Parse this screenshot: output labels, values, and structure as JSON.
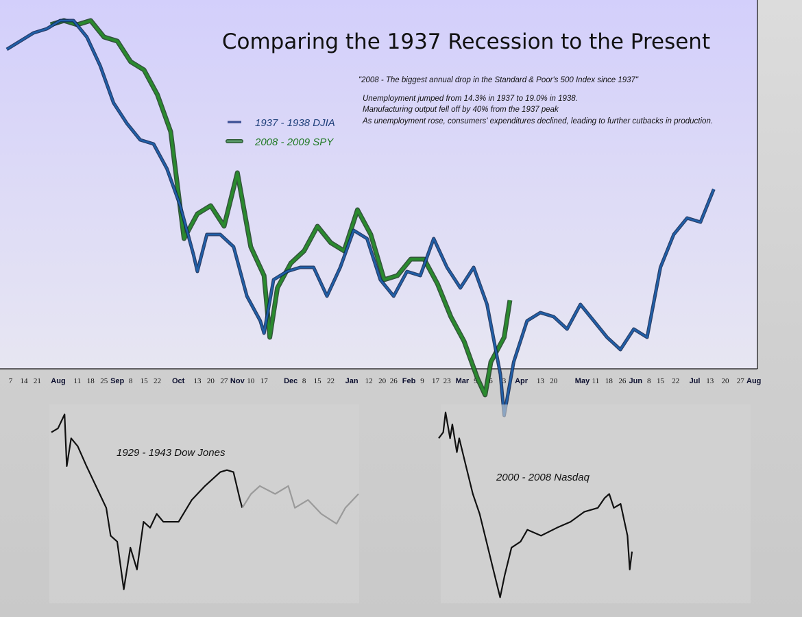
{
  "chart_data": [
    {
      "type": "line",
      "title": "Comparing the 1937 Recession to the Present",
      "annotations": {
        "quote": "\"2008 - The biggest annual drop in the Standard & Poor's 500 Index since 1937\"",
        "lines": [
          "Unemployment jumped from 14.3% in 1937 to 19.0% in 1938.",
          "Manufacturing output fell off by 40% from the 1937 peak",
          "As unemployment rose, consumers' expenditures declined, leading to further cutbacks in production."
        ]
      },
      "legend_placement": "center-left",
      "grid": false,
      "ylim": [
        0,
        100
      ],
      "colors": {
        "djia": "#1f5fa8",
        "spy": "#2a8a2e",
        "plot_bg_top": "#d3cffb",
        "plot_bg_bottom": "#e7e6f2"
      },
      "x_ticks": [
        {
          "label": "7",
          "date": "1937-07-07"
        },
        {
          "label": "14",
          "date": "1937-07-14"
        },
        {
          "label": "21",
          "date": "1937-07-21"
        },
        {
          "label": "Aug",
          "date": "1937-08-01",
          "month": true
        },
        {
          "label": "11",
          "date": "1937-08-11"
        },
        {
          "label": "18",
          "date": "1937-08-18"
        },
        {
          "label": "25",
          "date": "1937-08-25"
        },
        {
          "label": "Sep",
          "date": "1937-09-01",
          "month": true
        },
        {
          "label": "8",
          "date": "1937-09-08"
        },
        {
          "label": "15",
          "date": "1937-09-15"
        },
        {
          "label": "22",
          "date": "1937-09-22"
        },
        {
          "label": "Oct",
          "date": "1937-10-03",
          "month": true
        },
        {
          "label": "13",
          "date": "1937-10-13"
        },
        {
          "label": "20",
          "date": "1937-10-20"
        },
        {
          "label": "27",
          "date": "1937-10-27"
        },
        {
          "label": "Nov",
          "date": "1937-11-03",
          "month": true
        },
        {
          "label": "10",
          "date": "1937-11-10"
        },
        {
          "label": "17",
          "date": "1937-11-17"
        },
        {
          "label": "Dec",
          "date": "1937-12-01",
          "month": true
        },
        {
          "label": "8",
          "date": "1937-12-08"
        },
        {
          "label": "15",
          "date": "1937-12-15"
        },
        {
          "label": "22",
          "date": "1937-12-22"
        },
        {
          "label": "Jan",
          "date": "1938-01-02",
          "month": true
        },
        {
          "label": "12",
          "date": "1938-01-11"
        },
        {
          "label": "20",
          "date": "1938-01-18"
        },
        {
          "label": "26",
          "date": "1938-01-24"
        },
        {
          "label": "Feb",
          "date": "1938-02-01",
          "month": true
        },
        {
          "label": "9",
          "date": "1938-02-08"
        },
        {
          "label": "17",
          "date": "1938-02-15"
        },
        {
          "label": "23",
          "date": "1938-02-21"
        },
        {
          "label": "Mar",
          "date": "1938-03-01",
          "month": true
        },
        {
          "label": "9",
          "date": "1938-03-08"
        },
        {
          "label": "16",
          "date": "1938-03-15"
        },
        {
          "label": "3",
          "date": "1938-03-23"
        },
        {
          "label": "Apr",
          "date": "1938-04-01",
          "month": true
        },
        {
          "label": "13",
          "date": "1938-04-11"
        },
        {
          "label": "20",
          "date": "1938-04-18"
        },
        {
          "label": "May",
          "date": "1938-05-03",
          "month": true
        },
        {
          "label": "11",
          "date": "1938-05-10"
        },
        {
          "label": "18",
          "date": "1938-05-17"
        },
        {
          "label": "26",
          "date": "1938-05-24"
        },
        {
          "label": "Jun",
          "date": "1938-05-31",
          "month": true
        },
        {
          "label": "8",
          "date": "1938-06-07"
        },
        {
          "label": "15",
          "date": "1938-06-13"
        },
        {
          "label": "22",
          "date": "1938-06-21"
        },
        {
          "label": "Jul",
          "date": "1938-07-01",
          "month": true
        },
        {
          "label": "13",
          "date": "1938-07-09"
        },
        {
          "label": "20",
          "date": "1938-07-17"
        },
        {
          "label": "27",
          "date": "1938-07-25"
        },
        {
          "label": "Aug",
          "date": "1938-08-01",
          "month": true
        }
      ],
      "series": [
        {
          "name": "1937 - 1938 DJIA",
          "start_year": 1937,
          "points": [
            [
              "1937-07-05",
              88
            ],
            [
              "1937-07-12",
              90
            ],
            [
              "1937-07-19",
              92
            ],
            [
              "1937-07-26",
              93
            ],
            [
              "1937-08-02",
              95
            ],
            [
              "1937-08-09",
              95
            ],
            [
              "1937-08-16",
              91
            ],
            [
              "1937-08-23",
              84
            ],
            [
              "1937-08-30",
              75
            ],
            [
              "1937-09-06",
              70
            ],
            [
              "1937-09-13",
              66
            ],
            [
              "1937-09-20",
              65
            ],
            [
              "1937-09-27",
              59
            ],
            [
              "1937-10-04",
              50
            ],
            [
              "1937-10-11",
              38
            ],
            [
              "1937-10-13",
              34
            ],
            [
              "1937-10-18",
              43
            ],
            [
              "1937-10-25",
              43
            ],
            [
              "1937-11-01",
              40
            ],
            [
              "1937-11-08",
              28
            ],
            [
              "1937-11-15",
              22
            ],
            [
              "1937-11-17",
              19
            ],
            [
              "1937-11-22",
              32
            ],
            [
              "1937-11-29",
              34
            ],
            [
              "1937-12-06",
              35
            ],
            [
              "1937-12-13",
              35
            ],
            [
              "1937-12-20",
              28
            ],
            [
              "1937-12-27",
              35
            ],
            [
              "1938-01-03",
              44
            ],
            [
              "1938-01-10",
              42
            ],
            [
              "1938-01-17",
              32
            ],
            [
              "1938-01-24",
              28
            ],
            [
              "1938-01-31",
              34
            ],
            [
              "1938-02-07",
              33
            ],
            [
              "1938-02-14",
              42
            ],
            [
              "1938-02-21",
              35
            ],
            [
              "1938-02-28",
              30
            ],
            [
              "1938-03-07",
              35
            ],
            [
              "1938-03-14",
              26
            ],
            [
              "1938-03-21",
              9
            ],
            [
              "1938-03-23",
              -1
            ],
            [
              "1938-03-28",
              12
            ],
            [
              "1938-04-04",
              22
            ],
            [
              "1938-04-11",
              24
            ],
            [
              "1938-04-18",
              23
            ],
            [
              "1938-04-25",
              20
            ],
            [
              "1938-05-02",
              26
            ],
            [
              "1938-05-09",
              22
            ],
            [
              "1938-05-16",
              18
            ],
            [
              "1938-05-23",
              15
            ],
            [
              "1938-05-30",
              20
            ],
            [
              "1938-06-06",
              18
            ],
            [
              "1938-06-13",
              35
            ],
            [
              "1938-06-20",
              43
            ],
            [
              "1938-06-27",
              47
            ],
            [
              "1938-07-04",
              46
            ],
            [
              "1938-07-11",
              54
            ]
          ]
        },
        {
          "name": "2008 - 2009 SPY",
          "start_year": 2008,
          "points": [
            [
              "2008-07-28",
              94
            ],
            [
              "2008-08-04",
              95
            ],
            [
              "2008-08-11",
              94
            ],
            [
              "2008-08-18",
              95
            ],
            [
              "2008-08-25",
              91
            ],
            [
              "2008-09-01",
              90
            ],
            [
              "2008-09-08",
              85
            ],
            [
              "2008-09-15",
              83
            ],
            [
              "2008-09-22",
              77
            ],
            [
              "2008-09-29",
              68
            ],
            [
              "2008-10-06",
              42
            ],
            [
              "2008-10-13",
              48
            ],
            [
              "2008-10-20",
              50
            ],
            [
              "2008-10-27",
              45
            ],
            [
              "2008-11-03",
              58
            ],
            [
              "2008-11-10",
              40
            ],
            [
              "2008-11-17",
              33
            ],
            [
              "2008-11-20",
              18
            ],
            [
              "2008-11-24",
              30
            ],
            [
              "2008-12-01",
              36
            ],
            [
              "2008-12-08",
              39
            ],
            [
              "2008-12-15",
              45
            ],
            [
              "2008-12-22",
              41
            ],
            [
              "2008-12-29",
              39
            ],
            [
              "2009-01-05",
              49
            ],
            [
              "2009-01-12",
              43
            ],
            [
              "2009-01-19",
              32
            ],
            [
              "2009-01-26",
              33
            ],
            [
              "2009-02-02",
              37
            ],
            [
              "2009-02-09",
              37
            ],
            [
              "2009-02-16",
              31
            ],
            [
              "2009-02-23",
              23
            ],
            [
              "2009-03-02",
              17
            ],
            [
              "2009-03-09",
              8
            ],
            [
              "2009-03-13",
              4
            ],
            [
              "2009-03-16",
              12
            ],
            [
              "2009-03-23",
              18
            ],
            [
              "2009-03-26",
              27
            ]
          ]
        }
      ]
    },
    {
      "type": "line",
      "label": "1929 - 1943 Dow Jones",
      "ylim": [
        0,
        100
      ],
      "colors": {
        "highlight": "#111111",
        "rest": "#9a9a9a"
      },
      "series": [
        {
          "highlight": true,
          "points": [
            [
              1929.1,
              86
            ],
            [
              1929.4,
              88
            ],
            [
              1929.7,
              95
            ],
            [
              1929.8,
              69
            ],
            [
              1930.0,
              83
            ],
            [
              1930.3,
              79
            ],
            [
              1930.7,
              69
            ],
            [
              1931.0,
              62
            ],
            [
              1931.3,
              55
            ],
            [
              1931.6,
              48
            ],
            [
              1931.8,
              34
            ],
            [
              1932.1,
              31
            ],
            [
              1932.4,
              7
            ],
            [
              1932.7,
              28
            ],
            [
              1933.0,
              17
            ],
            [
              1933.3,
              41
            ],
            [
              1933.6,
              38
            ],
            [
              1933.9,
              45
            ],
            [
              1934.2,
              41
            ],
            [
              1934.9,
              41
            ],
            [
              1935.5,
              52
            ],
            [
              1936.1,
              59
            ],
            [
              1936.8,
              66
            ],
            [
              1937.1,
              67
            ],
            [
              1937.4,
              66
            ],
            [
              1937.7,
              52
            ],
            [
              1937.8,
              48
            ]
          ]
        },
        {
          "highlight": false,
          "points": [
            [
              1937.8,
              48
            ],
            [
              1938.2,
              55
            ],
            [
              1938.6,
              59
            ],
            [
              1939.3,
              55
            ],
            [
              1939.9,
              59
            ],
            [
              1940.2,
              48
            ],
            [
              1940.8,
              52
            ],
            [
              1941.4,
              45
            ],
            [
              1942.1,
              40
            ],
            [
              1942.5,
              48
            ],
            [
              1943.1,
              55
            ]
          ]
        }
      ]
    },
    {
      "type": "line",
      "label": "2000 - 2008 Nasdaq",
      "ylim": [
        0,
        100
      ],
      "colors": {
        "highlight": "#111111"
      },
      "series": [
        {
          "highlight": true,
          "points": [
            [
              2000.0,
              83
            ],
            [
              2000.2,
              86
            ],
            [
              2000.3,
              96
            ],
            [
              2000.5,
              83
            ],
            [
              2000.6,
              90
            ],
            [
              2000.8,
              76
            ],
            [
              2000.9,
              83
            ],
            [
              2001.2,
              69
            ],
            [
              2001.5,
              55
            ],
            [
              2001.8,
              45
            ],
            [
              2002.1,
              31
            ],
            [
              2002.4,
              17
            ],
            [
              2002.7,
              3
            ],
            [
              2002.9,
              14
            ],
            [
              2003.2,
              28
            ],
            [
              2003.6,
              31
            ],
            [
              2003.9,
              37
            ],
            [
              2004.5,
              34
            ],
            [
              2005.2,
              38
            ],
            [
              2005.8,
              41
            ],
            [
              2006.4,
              46
            ],
            [
              2007.0,
              48
            ],
            [
              2007.3,
              53
            ],
            [
              2007.5,
              55
            ],
            [
              2007.7,
              48
            ],
            [
              2008.0,
              50
            ],
            [
              2008.3,
              34
            ],
            [
              2008.4,
              17
            ],
            [
              2008.5,
              26
            ]
          ]
        }
      ]
    }
  ]
}
